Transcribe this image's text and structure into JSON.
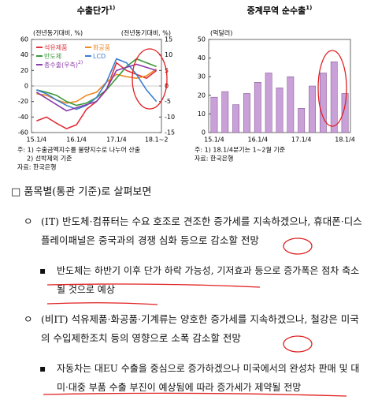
{
  "charts": [
    {
      "type": "line",
      "title": "수출단가",
      "title_note": "1)",
      "y_label": "(전년동기대비, %)",
      "y2_label": "(전년동기대비, %)",
      "categories": [
        "15.1/4",
        null,
        null,
        null,
        "16.1/4",
        null,
        null,
        null,
        "17.1/4",
        null,
        null,
        null,
        "18.1~2"
      ],
      "ylim": [
        -60,
        60
      ],
      "yticks": [
        -60,
        -40,
        -20,
        0,
        20,
        40,
        60
      ],
      "y2lim": [
        -15,
        15
      ],
      "y2ticks": [
        -15,
        -10,
        -5,
        0,
        5,
        10,
        15
      ],
      "series": [
        {
          "name": "석유제품",
          "color": "#e0303a",
          "values": [
            -45,
            -40,
            -48,
            -55,
            -50,
            -30,
            -20,
            -5,
            30,
            20,
            15,
            10,
            20
          ]
        },
        {
          "name": "화공품",
          "color": "#f08a24",
          "values": [
            -10,
            -12,
            -18,
            -22,
            -20,
            -12,
            -8,
            5,
            15,
            12,
            10,
            13,
            22
          ]
        },
        {
          "name": "반도체",
          "color": "#3a9a3a",
          "values": [
            -5,
            -8,
            -12,
            -20,
            -25,
            -22,
            -15,
            -5,
            10,
            25,
            35,
            30,
            25
          ]
        },
        {
          "name": "LCD",
          "color": "#3a7fd0",
          "values": [
            -5,
            -10,
            -18,
            -25,
            -30,
            -25,
            -15,
            5,
            35,
            30,
            15,
            -5,
            -20
          ]
        },
        {
          "name": "총수출(우측)",
          "name_note": "2)",
          "color": "#8a3aa8",
          "axis": "y2",
          "values": [
            -2,
            -4,
            -6,
            -8,
            -7,
            -6,
            -5,
            -1,
            5,
            6,
            7,
            6,
            5
          ]
        }
      ],
      "notes": [
        "주: 1) 수출금액지수를 물량지수로 나누어 산출",
        "2) 선박제외 기준",
        "자료: 한국은행"
      ]
    },
    {
      "type": "bar",
      "title": "중계무역 순수출",
      "title_note": "1)",
      "y_label": "(억달러)",
      "categories": [
        "15.1/4",
        null,
        null,
        null,
        "16.1/4",
        null,
        null,
        null,
        "17.1/4",
        null,
        null,
        null,
        "18.1/4"
      ],
      "ylim": [
        0,
        50
      ],
      "yticks": [
        0,
        10,
        20,
        30,
        40,
        50
      ],
      "color": "#c9a0d8",
      "values": [
        19,
        22,
        15,
        21,
        27,
        32,
        24,
        30,
        13,
        25,
        32,
        38,
        21
      ],
      "notes": [
        "주: 1) 18.1/4분기는 1~2월 기준",
        "자료: 한국은행"
      ]
    }
  ],
  "section": {
    "heading": "□ 품목별(통관 기준)로 살펴보면",
    "items": [
      {
        "marker": "ㅇ",
        "text": "(IT) 반도체·컴퓨터는 수요 호조로 견조한 증가세를 지속하겠으나, 휴대폰·디스플레이패널은 중국과의 경쟁 심화 등으로 감소할 전망"
      },
      {
        "marker": "▪",
        "text": "반도체는 하반기 이후 단가 하락 가능성, 기저효과 등으로 증가폭은 점차 축소될 것으로 예상"
      },
      {
        "marker": "ㅇ",
        "text": "(비IT) 석유제품·화공품·기계류는 양호한 증가세를 지속하겠으나, 철강은 미국의 수입제한조치 등의 영향으로 소폭 감소할 전망"
      },
      {
        "marker": "▪",
        "text": "자동차는 대EU 수출을 중심으로 증가하겠으나 미국에서의 완성차 판매 및 대미·대중 부품 수출 부진이 예상됨에 따라 증가세가 제약될 전망"
      }
    ]
  }
}
